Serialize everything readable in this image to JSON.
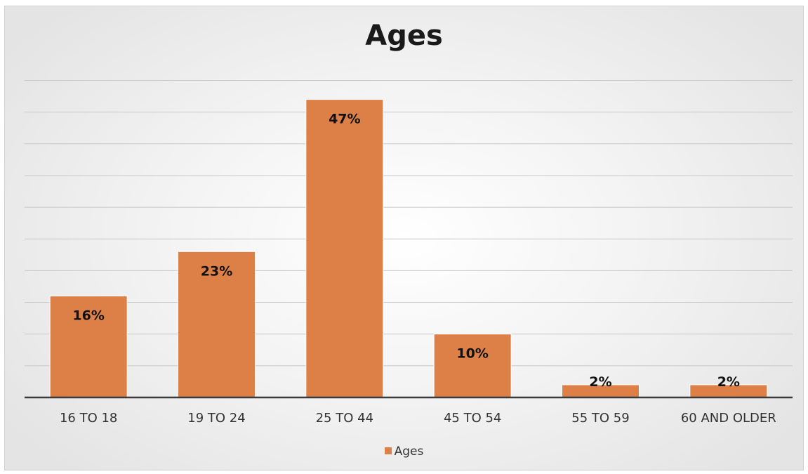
{
  "chart_data": {
    "type": "bar",
    "title": "Ages",
    "categories": [
      "16 TO 18",
      "19 TO 24",
      "25 TO 44",
      "45 TO 54",
      "55 TO 59",
      "60 AND OLDER"
    ],
    "series": [
      {
        "name": "Ages",
        "values": [
          16,
          23,
          47,
          10,
          2,
          2
        ],
        "data_labels": [
          "16%",
          "23%",
          "47%",
          "10%",
          "2%",
          "2%"
        ],
        "color": "#dd8047"
      }
    ],
    "ylim": [
      0,
      50
    ],
    "grid": true,
    "legend_position": "bottom"
  }
}
